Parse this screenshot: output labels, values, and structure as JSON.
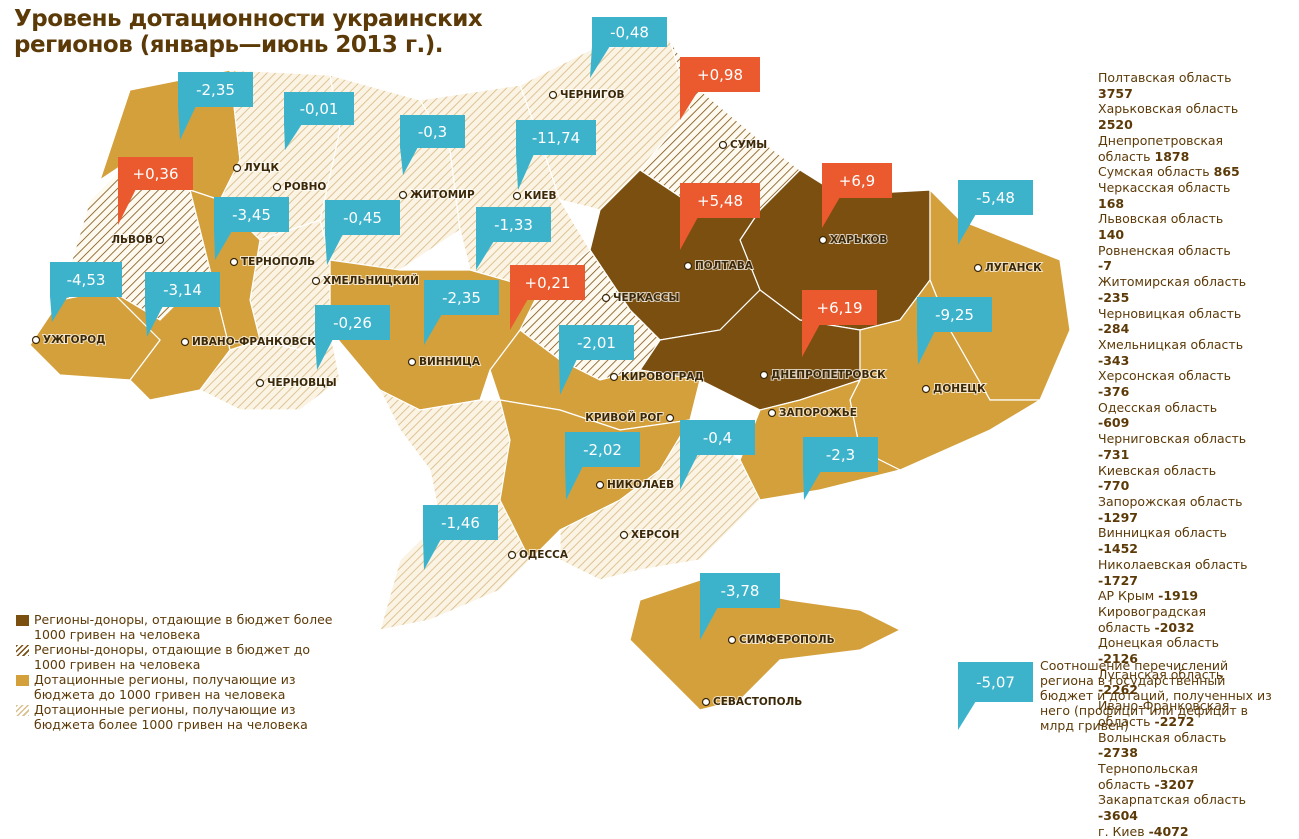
{
  "title": "Уровень дотационности украинских регионов (январь—июнь 2013 г.).",
  "cities": [
    "ЛУЦК",
    "РОВНО",
    "ЖИТОМИР",
    "КИЕВ",
    "ЧЕРНИГОВ",
    "СУМЫ",
    "ХАРЬКОВ",
    "ПОЛТАВА",
    "ЛУГАНСК",
    "ЛЬВОВ",
    "ТЕРНОПОЛЬ",
    "ХМЕЛЬНИЦКИЙ",
    "ЧЕРКАССЫ",
    "УЖГОРОД",
    "ИВАНО-ФРАНКОВСК",
    "ВИННИЦА",
    "КИРОВОГРАД",
    "ДНЕПРОПЕТРОВСК",
    "ДОНЕЦК",
    "ЧЕРНОВЦЫ",
    "КРИВОЙ РОГ",
    "ЗАПОРОЖЬЕ",
    "НИКОЛАЕВ",
    "ХЕРСОН",
    "ОДЕССА",
    "СИМФЕРОПОЛЬ",
    "СЕВАСТОПОЛЬ"
  ],
  "balances": {
    "values": [
      -0.48,
      0.98,
      -2.35,
      -0.01,
      -0.3,
      -11.74,
      0.36,
      5.48,
      6.9,
      -5.48,
      -3.45,
      -0.45,
      -1.33,
      -4.53,
      -3.14,
      0.21,
      -2.35,
      6.19,
      -0.26,
      -9.25,
      -2.01,
      -2.02,
      -0.4,
      -2.3,
      -1.46,
      -3.78
    ],
    "value_labels": [
      "-0,48",
      "+0,98",
      "-2,35",
      "-0,01",
      "-0,3",
      "-11,74",
      "+0,36",
      "+5,48",
      "+6,9",
      "-5,48",
      "-3,45",
      "-0,45",
      "-1,33",
      "-4,53",
      "-3,14",
      "+0,21",
      "-2,35",
      "+6,19",
      "-0,26",
      "-9,25",
      "-2,01",
      "-2,02",
      "-0,4",
      "-2,3",
      "-1,46",
      "-3,78"
    ],
    "positive_color": "#ea5a2e",
    "negative_color": "#3db3cb"
  },
  "ranking": {
    "names": [
      "Полтавская область",
      "Харьковская область",
      "Днепропетровская область",
      "Сумская область",
      "Черкасская область",
      "Львовская область",
      "Ровненская область",
      "Житомирская область",
      "Черновицкая область",
      "Хмельницкая область",
      "Херсонская область",
      "Одесская область",
      "Черниговская область",
      "Киевская область",
      "Запорожская область",
      "Винницкая область",
      "Николаевская область",
      "АР Крым",
      "Кировоградская область",
      "Донецкая область",
      "Луганская область",
      "Ивано-Франковская область",
      "Волынская область",
      "Тернопольская область",
      "Закарпатская область",
      "г. Киев"
    ],
    "values": [
      3757,
      2520,
      1878,
      865,
      168,
      140,
      -7,
      -235,
      -284,
      -343,
      -376,
      -609,
      -731,
      -770,
      -1297,
      -1452,
      -1727,
      -1919,
      -2032,
      -2126,
      -2262,
      -2272,
      -2738,
      -3207,
      -3604,
      -4072
    ]
  },
  "legend": [
    {
      "label": "Регионы-доноры, отдающие в бюджет более 1000 гривен на человека",
      "color": "#7b4f10",
      "hatched": false
    },
    {
      "label": "Регионы-доноры, отдающие в бюджет до 1000 гривен на человека",
      "color": "#7b4f10",
      "hatched": true
    },
    {
      "label": "Дотационные регионы, получающие из бюджета до 1000 гривен на человека",
      "color": "#d3a03c",
      "hatched": false
    },
    {
      "label": "Дотационные регионы, получающие из бюджета более 1000 гривен на человека",
      "color": "#d9bf8c",
      "hatched": true
    }
  ],
  "note": {
    "text": "Соотношение перечислений региона в государственный бюджет и дотаций, полученных из него (профицит или дефицит в млрд гривен)",
    "value": -5.07,
    "value_label": "-5,07"
  }
}
